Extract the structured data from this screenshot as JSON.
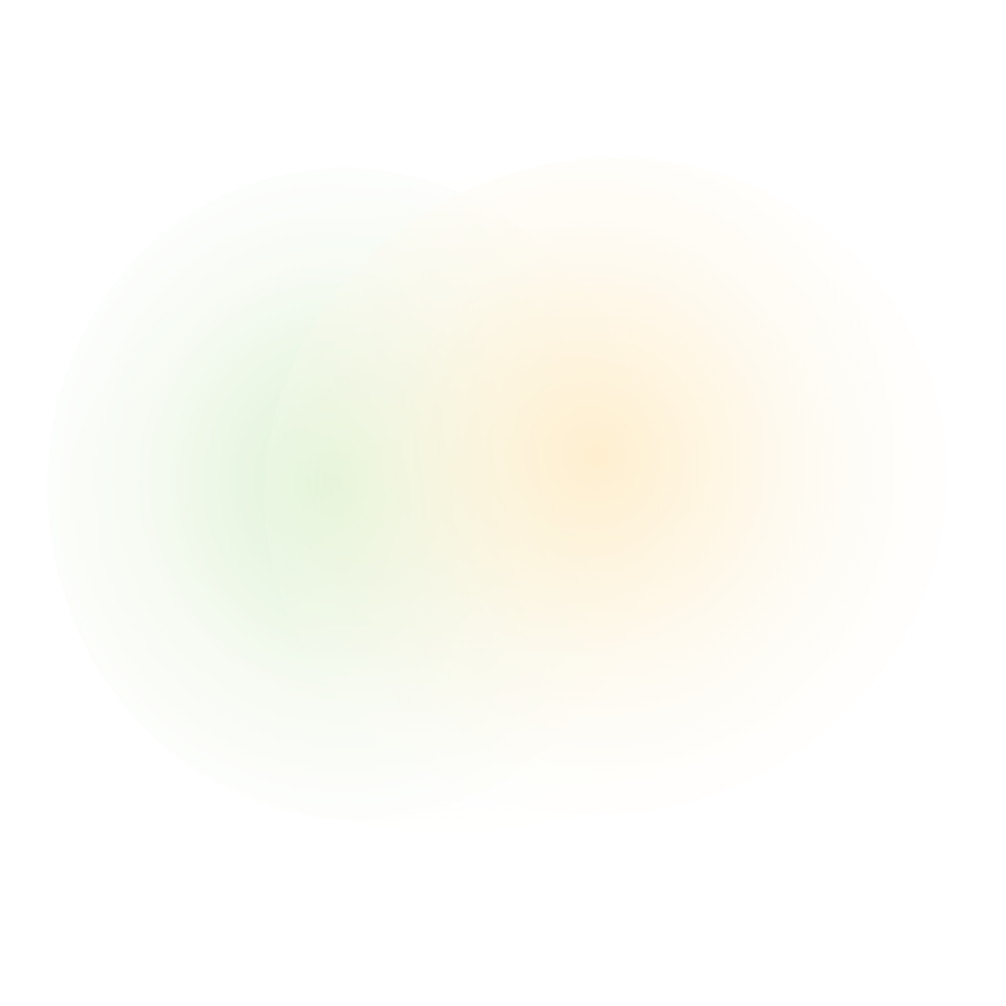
{
  "canvas": {
    "background": "#ffffff",
    "gradient_colors": [
      "#dcf3d4",
      "#ffeecd",
      "#fafaf0"
    ]
  }
}
